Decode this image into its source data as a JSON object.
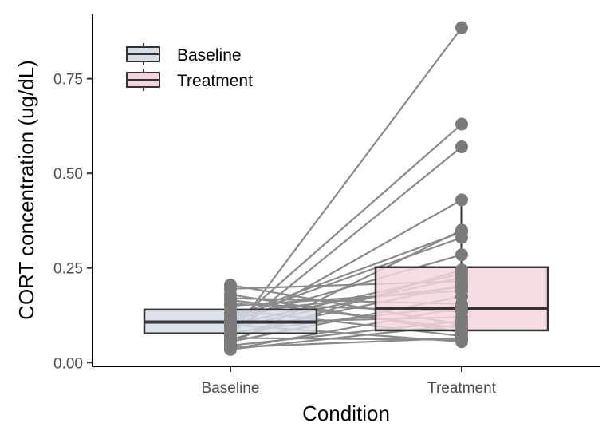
{
  "chart_data": {
    "type": "boxplot",
    "xlabel": "Condition",
    "ylabel": "CORT concentration (ug/dL)",
    "categories": [
      "Baseline",
      "Treatment"
    ],
    "ylim": [
      -0.01,
      0.92
    ],
    "yticks": [
      0.0,
      0.25,
      0.5,
      0.75
    ],
    "ytick_labels": [
      "0.00",
      "0.25",
      "0.50",
      "0.75"
    ],
    "legend": {
      "position": "top-left",
      "items": [
        {
          "label": "Baseline",
          "color": "#d6dde5"
        },
        {
          "label": "Treatment",
          "color": "#f4d5da"
        }
      ]
    },
    "boxes": [
      {
        "category": "Baseline",
        "q1": 0.077,
        "median": 0.107,
        "q3": 0.14,
        "whisker_low": 0.035,
        "whisker_high": 0.2,
        "fill": "#d6dde5"
      },
      {
        "category": "Treatment",
        "q1": 0.085,
        "median": 0.143,
        "q3": 0.252,
        "whisker_low": 0.055,
        "whisker_high": 0.425,
        "fill": "#f4d5da"
      }
    ],
    "paired_lines": [
      [
        0.205,
        0.1
      ],
      [
        0.195,
        0.215
      ],
      [
        0.18,
        0.08
      ],
      [
        0.17,
        0.155
      ],
      [
        0.165,
        0.09
      ],
      [
        0.155,
        0.135
      ],
      [
        0.15,
        0.19
      ],
      [
        0.14,
        0.07
      ],
      [
        0.13,
        0.2
      ],
      [
        0.12,
        0.345
      ],
      [
        0.115,
        0.33
      ],
      [
        0.11,
        0.285
      ],
      [
        0.105,
        0.12
      ],
      [
        0.1,
        0.235
      ],
      [
        0.1,
        0.055
      ],
      [
        0.095,
        0.63
      ],
      [
        0.09,
        0.225
      ],
      [
        0.085,
        0.43
      ],
      [
        0.08,
        0.15
      ],
      [
        0.075,
        0.57
      ],
      [
        0.075,
        0.205
      ],
      [
        0.07,
        0.885
      ],
      [
        0.065,
        0.06
      ],
      [
        0.06,
        0.245
      ],
      [
        0.055,
        0.175
      ],
      [
        0.05,
        0.35
      ],
      [
        0.045,
        0.11
      ],
      [
        0.04,
        0.065
      ],
      [
        0.035,
        0.145
      ],
      [
        0.035,
        0.1
      ]
    ],
    "point_color": "#7a7a7a",
    "line_color": "#8a8a8a",
    "grid": false
  }
}
